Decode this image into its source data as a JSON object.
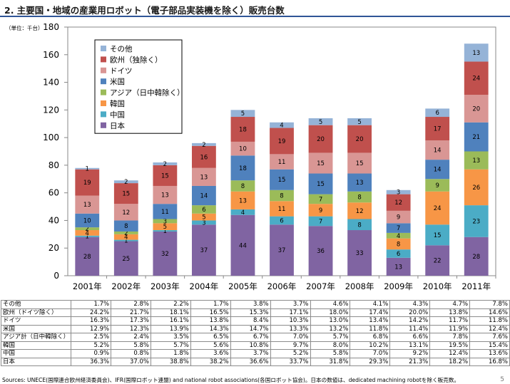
{
  "title": "2. 主要国・地域の産業用ロボット（電子部品実装機を除く）販売台数",
  "unit_label": "（単位：千台）",
  "page_number": "5",
  "source": "Sources: UNECE(国際連合欧州経済委員会)、IFR(国際ロボット連盟) and national robot associations(各国ロボット協会)。日本の数値は、dedicated machining robotを除く販売数。",
  "colors": {
    "日本": "#8064a2",
    "中国": "#4bacc6",
    "韓国": "#f79646",
    "アジア": "#9bbb59",
    "米国": "#4f81bd",
    "ドイツ": "#d99694",
    "欧州": "#c0504d",
    "その他": "#95b3d7"
  },
  "chart_data": {
    "type": "bar",
    "stacked": true,
    "categories": [
      "2001年",
      "2002年",
      "2003年",
      "2004年",
      "2005年",
      "2006年",
      "2007年",
      "2008年",
      "2009年",
      "2010年",
      "2011年"
    ],
    "ylim": [
      0,
      180
    ],
    "yticks": [
      0,
      20,
      40,
      60,
      80,
      100,
      120,
      140,
      160,
      180
    ],
    "grid": false,
    "legend_placement": "top-left",
    "series": [
      {
        "name": "日本",
        "color": "#8064a2",
        "values": [
          28,
          25,
          32,
          37,
          44,
          37,
          36,
          33,
          13,
          22,
          28
        ]
      },
      {
        "name": "中国",
        "color": "#4bacc6",
        "values": [
          1,
          1,
          1,
          3,
          4,
          6,
          7,
          8,
          6,
          15,
          23
        ]
      },
      {
        "name": "韓国",
        "color": "#f79646",
        "values": [
          4,
          4,
          5,
          5,
          13,
          11,
          9,
          12,
          8,
          24,
          26
        ]
      },
      {
        "name": "アジア（日中韓除く）",
        "color": "#9bbb59",
        "values": [
          2,
          2,
          3,
          6,
          8,
          8,
          7,
          8,
          4,
          9,
          13
        ]
      },
      {
        "name": "米国",
        "color": "#4f81bd",
        "values": [
          10,
          8,
          11,
          14,
          18,
          15,
          15,
          13,
          7,
          14,
          21
        ]
      },
      {
        "name": "ドイツ",
        "color": "#d99694",
        "values": [
          13,
          12,
          13,
          13,
          10,
          11,
          15,
          15,
          9,
          14,
          20
        ]
      },
      {
        "name": "欧州（独除く）",
        "color": "#c0504d",
        "values": [
          19,
          15,
          15,
          16,
          18,
          19,
          20,
          20,
          12,
          17,
          24
        ]
      },
      {
        "name": "その他",
        "color": "#95b3d7",
        "values": [
          1,
          2,
          2,
          2,
          5,
          4,
          5,
          5,
          3,
          6,
          13
        ]
      }
    ]
  },
  "table": {
    "rows": [
      {
        "label": "その他",
        "values": [
          "1.7%",
          "2.8%",
          "2.2%",
          "1.7%",
          "3.8%",
          "3.7%",
          "4.6%",
          "4.1%",
          "4.3%",
          "4.7%",
          "7.8%"
        ]
      },
      {
        "label": "欧州（ドイツ除く）",
        "values": [
          "24.2%",
          "21.7%",
          "18.1%",
          "16.5%",
          "15.3%",
          "17.1%",
          "18.0%",
          "17.4%",
          "20.0%",
          "13.8%",
          "14.6%"
        ]
      },
      {
        "label": "ドイツ",
        "values": [
          "16.3%",
          "17.3%",
          "16.1%",
          "13.8%",
          "8.4%",
          "10.3%",
          "13.0%",
          "13.4%",
          "14.2%",
          "11.7%",
          "11.8%"
        ]
      },
      {
        "label": "米国",
        "values": [
          "12.9%",
          "12.3%",
          "13.9%",
          "14.3%",
          "14.7%",
          "13.3%",
          "13.2%",
          "11.8%",
          "11.4%",
          "11.9%",
          "12.4%"
        ]
      },
      {
        "label": "アジア計（日中韓除く）",
        "values": [
          "2.5%",
          "2.4%",
          "3.5%",
          "6.5%",
          "6.7%",
          "7.0%",
          "5.7%",
          "6.8%",
          "6.6%",
          "7.8%",
          "7.6%"
        ]
      },
      {
        "label": "韓国",
        "values": [
          "5.2%",
          "5.8%",
          "5.7%",
          "5.6%",
          "10.8%",
          "9.7%",
          "8.0%",
          "10.2%",
          "13.1%",
          "19.5%",
          "15.4%"
        ]
      },
      {
        "label": "中国",
        "values": [
          "0.9%",
          "0.8%",
          "1.8%",
          "3.6%",
          "3.7%",
          "5.2%",
          "5.8%",
          "7.0%",
          "9.2%",
          "12.4%",
          "13.6%"
        ]
      },
      {
        "label": "日本",
        "values": [
          "36.3%",
          "37.0%",
          "38.8%",
          "38.2%",
          "36.6%",
          "33.7%",
          "31.8%",
          "29.3%",
          "21.3%",
          "18.2%",
          "16.8%"
        ]
      }
    ]
  }
}
